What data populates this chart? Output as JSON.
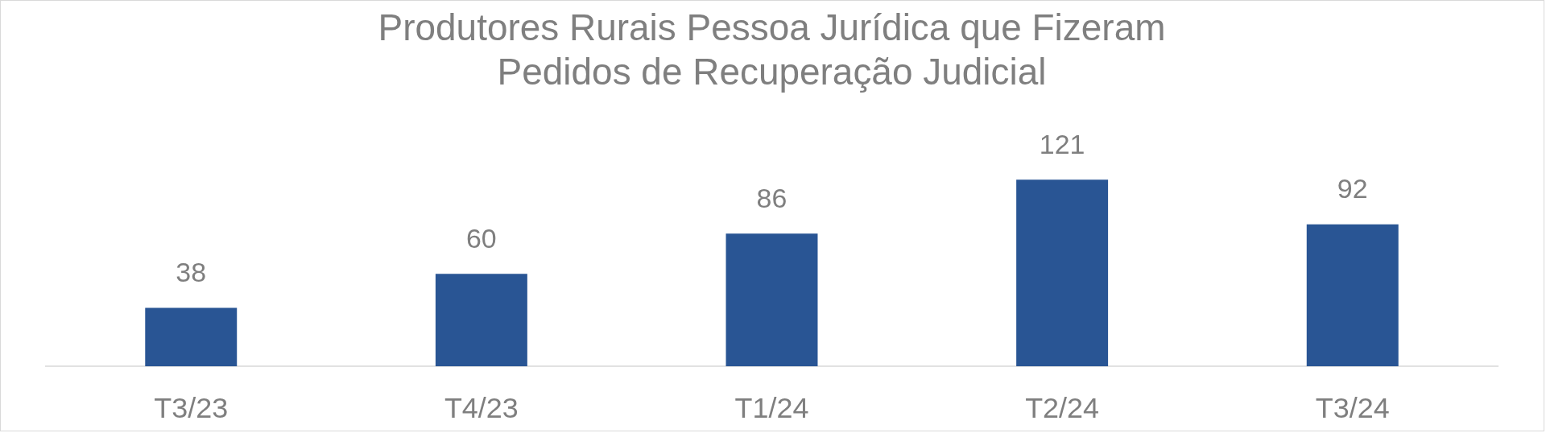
{
  "chart_data": {
    "type": "bar",
    "title": "Produtores Rurais Pessoa Jurídica que Fizeram\nPedidos de Recuperação Judicial",
    "categories": [
      "T3/23",
      "T4/23",
      "T1/24",
      "T2/24",
      "T3/24"
    ],
    "values": [
      38,
      60,
      86,
      121,
      92
    ],
    "color": "#295594",
    "data_labels": true,
    "grid": false,
    "legend": false,
    "tick_labels": "x"
  }
}
